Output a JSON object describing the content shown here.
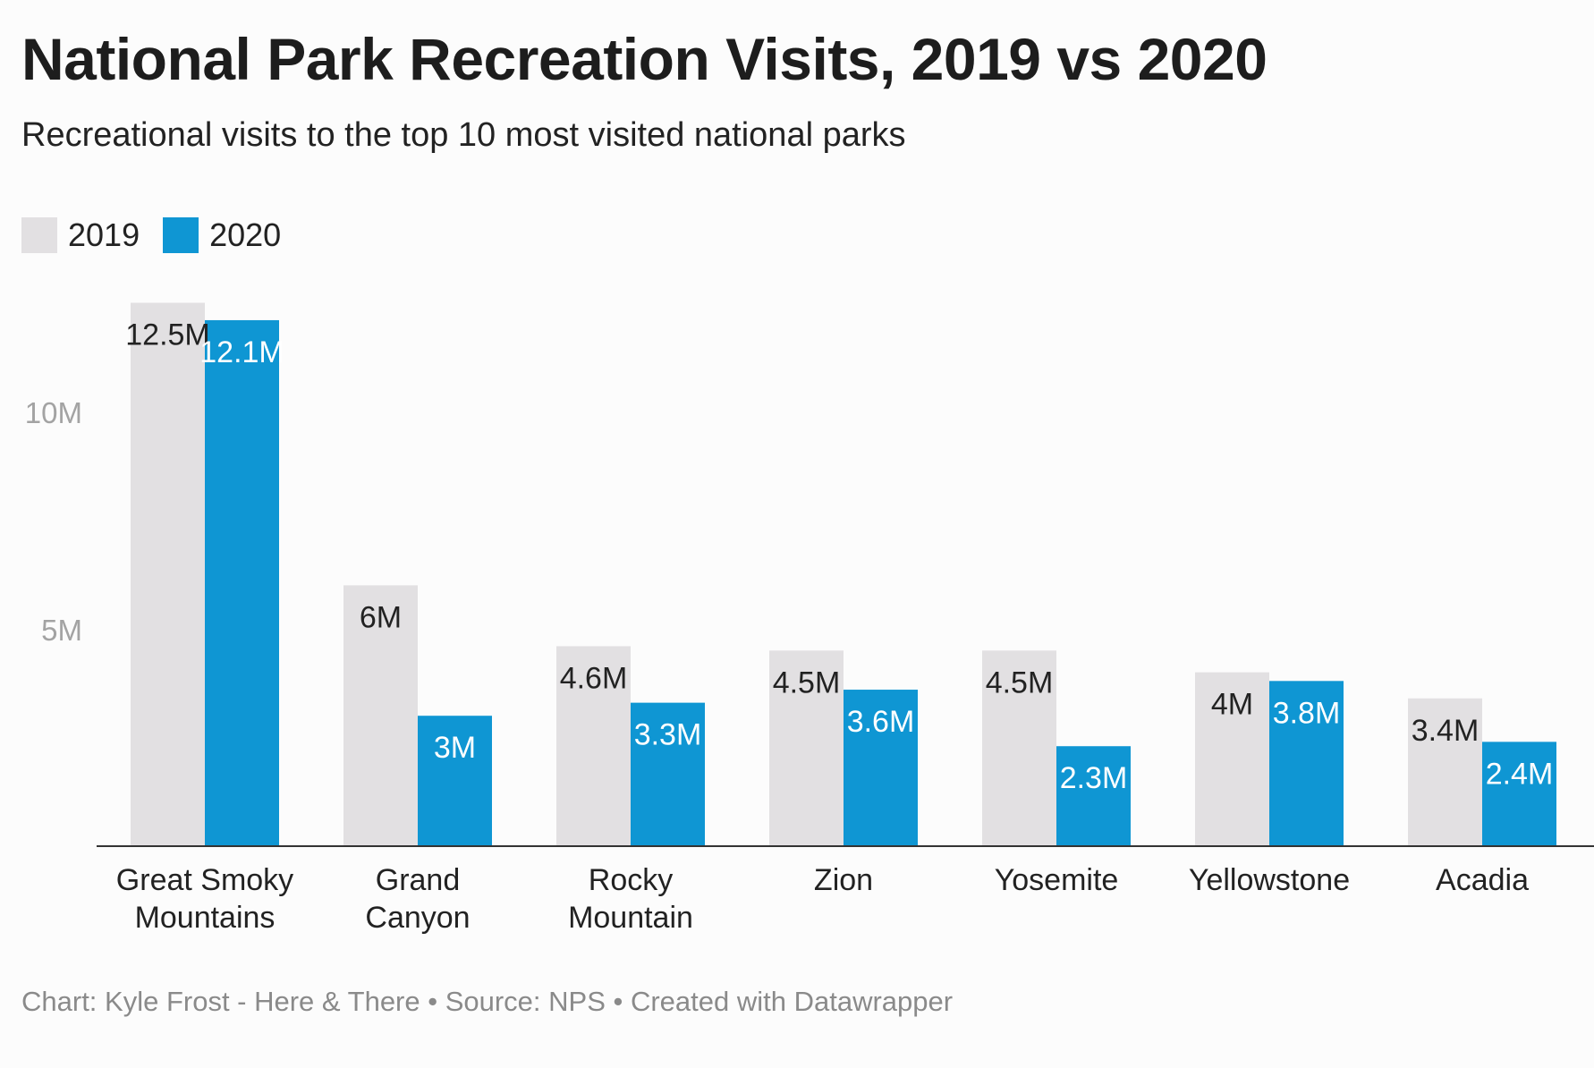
{
  "title": "National Park Recreation Visits, 2019 vs 2020",
  "subtitle": "Recreational visits to the top 10 most visited national parks",
  "footer": "Chart: Kyle Frost - Here & There • Source: NPS • Created with Datawrapper",
  "colors": {
    "series_2019": "#e2e0e2",
    "series_2020": "#0f96d3",
    "axis_label": "#a3a3a3",
    "baseline": "#333333"
  },
  "chart_data": {
    "type": "bar",
    "title": "National Park Recreation Visits, 2019 vs 2020",
    "subtitle": "Recreational visits to the top 10 most visited national parks",
    "categories": [
      [
        "Great Smoky",
        "Mountains"
      ],
      [
        "Grand",
        "Canyon"
      ],
      [
        "Rocky",
        "Mountain"
      ],
      [
        "Zion"
      ],
      [
        "Yosemite"
      ],
      [
        "Yellowstone"
      ],
      [
        "Acadia"
      ]
    ],
    "series": [
      {
        "name": "2019",
        "values": [
          12.5,
          6.0,
          4.6,
          4.5,
          4.5,
          4.0,
          3.4
        ],
        "labels": [
          "12.5M",
          "6M",
          "4.6M",
          "4.5M",
          "4.5M",
          "4M",
          "3.4M"
        ]
      },
      {
        "name": "2020",
        "values": [
          12.1,
          3.0,
          3.3,
          3.6,
          2.3,
          3.8,
          2.4
        ],
        "labels": [
          "12.1M",
          "3M",
          "3.3M",
          "3.6M",
          "2.3M",
          "3.8M",
          "2.4M"
        ]
      }
    ],
    "yticks": [
      5,
      10
    ],
    "ytick_labels": [
      "5M",
      "10M"
    ],
    "ylim": [
      0,
      12.5
    ],
    "unit": "M",
    "grid": false,
    "legend": "top-left"
  }
}
